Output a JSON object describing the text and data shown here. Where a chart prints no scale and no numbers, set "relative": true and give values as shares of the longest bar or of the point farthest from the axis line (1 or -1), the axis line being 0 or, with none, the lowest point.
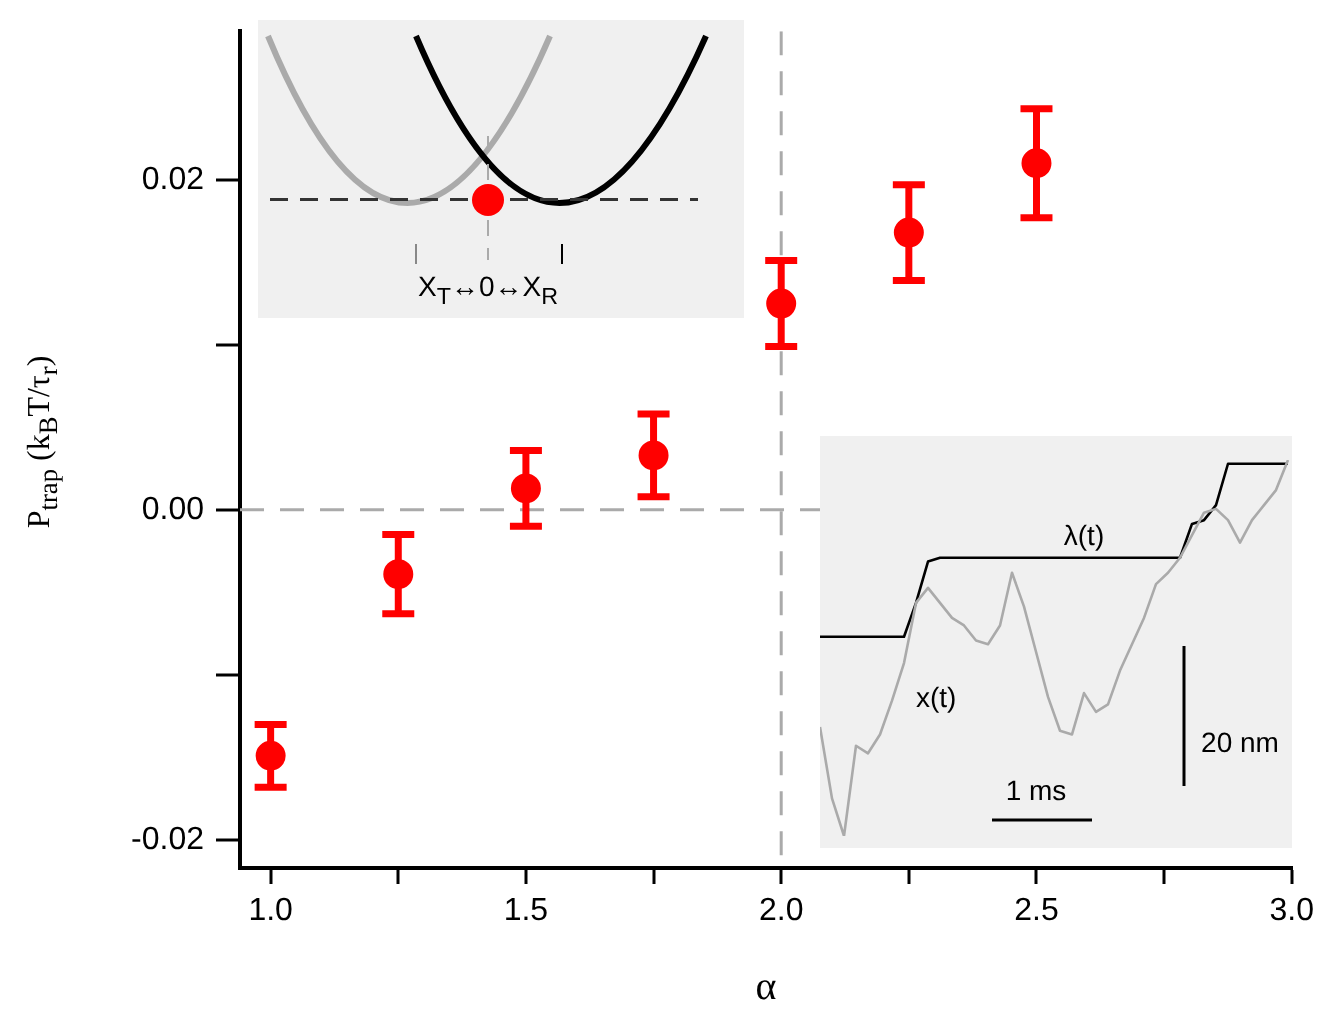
{
  "chart_data": [
    {
      "type": "scatter",
      "xlabel": "α",
      "ylabel": "P$_{trap}$ (k$_{B}$T/τ$_{r}$)",
      "x": [
        1.0,
        1.25,
        1.5,
        1.75,
        2.0,
        2.25,
        2.5
      ],
      "series": [
        {
          "color": "#ff0000",
          "values": [
            -0.0149,
            -0.0039,
            0.0013,
            0.0033,
            0.0125,
            0.0168,
            0.021
          ],
          "errors": [
            0.0019,
            0.0024,
            0.0023,
            0.0025,
            0.0026,
            0.0029,
            0.0033
          ]
        }
      ],
      "xlim": [
        0.94,
        3.0
      ],
      "xticks": [
        {
          "value": 1.0,
          "label": "1.0"
        },
        {
          "value": 1.25,
          "label": null
        },
        1.5,
        {
          "value": 1.75,
          "label": null
        },
        {
          "value": 2.0,
          "label": "2.0"
        },
        {
          "value": 2.25,
          "label": null
        },
        2.5,
        {
          "value": 2.75,
          "label": null
        },
        {
          "value": 3.0,
          "label": "3.0"
        }
      ],
      "ylim": [
        -0.0217,
        0.029
      ],
      "yticks": [
        {
          "value": -0.02,
          "label": "-0.02"
        },
        {
          "value": -0.01,
          "label": null
        },
        {
          "value": 0,
          "label": "0.00"
        },
        {
          "value": 0.01,
          "label": null
        },
        {
          "value": 0.02,
          "label": "0.02"
        }
      ],
      "ref_lines": [
        {
          "axis": "y",
          "value": 0,
          "color": "#aaaaaa",
          "line_style": "dashed"
        },
        {
          "axis": "x",
          "value": 2.0,
          "color": "#aaaaaa",
          "line_style": "dashed"
        }
      ],
      "annotations": [
        "X$_{T}$↔0↔X$_{R}$"
      ],
      "marker": "circle",
      "legend": false
    },
    {
      "type": "line",
      "relative": true,
      "categories": [
        null,
        null,
        null,
        null,
        null,
        null,
        null,
        null,
        null,
        null,
        null,
        null,
        null,
        null,
        null,
        null,
        null,
        null,
        null,
        null,
        null,
        null,
        null,
        null,
        null,
        null,
        null,
        null,
        null,
        null,
        null,
        null,
        null,
        null,
        null,
        null,
        null,
        null,
        null,
        null
      ],
      "series": [
        {
          "name": "x(t)",
          "color": "#aaaaaa",
          "values": [
            0.29,
            0.1,
            0,
            0.24,
            0.22,
            0.27,
            0.36,
            0.46,
            0.62,
            0.66,
            0.62,
            0.58,
            0.56,
            0.52,
            0.51,
            0.56,
            0.7,
            0.61,
            0.49,
            0.37,
            0.28,
            0.27,
            0.38,
            0.33,
            0.35,
            0.44,
            0.51,
            0.58,
            0.67,
            0.7,
            0.74,
            0.8,
            0.86,
            0.87,
            0.84,
            0.78,
            0.84,
            0.88,
            0.92,
            1
          ]
        },
        {
          "name": "λ(t)",
          "color": "#000000",
          "values": [
            0.53,
            0.53,
            0.53,
            0.53,
            0.53,
            0.53,
            0.53,
            0.53,
            0.62,
            0.73,
            0.74,
            0.74,
            0.74,
            0.74,
            0.74,
            0.74,
            0.74,
            0.74,
            0.74,
            0.74,
            0.74,
            0.74,
            0.74,
            0.74,
            0.74,
            0.74,
            0.74,
            0.74,
            0.74,
            0.74,
            0.74,
            0.83,
            0.84,
            0.88,
            0.99,
            0.99,
            0.99,
            0.99,
            0.99,
            0.99
          ]
        }
      ],
      "annotations": [
        "1 ms",
        "20 nm"
      ],
      "legend": false
    }
  ]
}
